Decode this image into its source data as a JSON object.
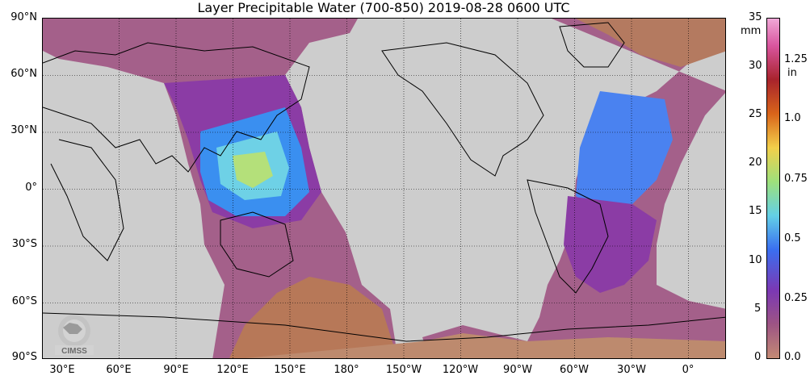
{
  "title": "Layer Precipitable Water (700-850)  2019-08-28 0600 UTC",
  "lat_labels": [
    "90°N",
    "60°N",
    "30°N",
    "0°",
    "30°S",
    "60°S",
    "90°S"
  ],
  "lon_labels": [
    "30°E",
    "60°E",
    "90°E",
    "120°E",
    "150°E",
    "180°",
    "150°W",
    "120°W",
    "90°W",
    "60°W",
    "30°W",
    "0°"
  ],
  "colorbar": {
    "mm_unit": "mm",
    "in_unit": "in",
    "mm_ticks": [
      "35",
      "30",
      "25",
      "20",
      "15",
      "10",
      "5",
      "0"
    ],
    "in_ticks": [
      "1.25",
      "1.0",
      "0.75",
      "0.5",
      "0.25",
      "0.0"
    ]
  },
  "logo": {
    "text": "CIMSS"
  }
}
